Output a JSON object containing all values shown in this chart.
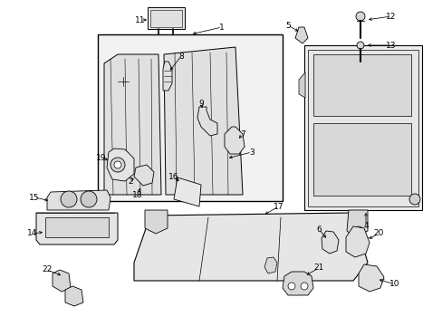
{
  "bg_color": "#ffffff",
  "line_color": "#000000",
  "fig_w": 4.89,
  "fig_h": 3.6,
  "dpi": 100
}
